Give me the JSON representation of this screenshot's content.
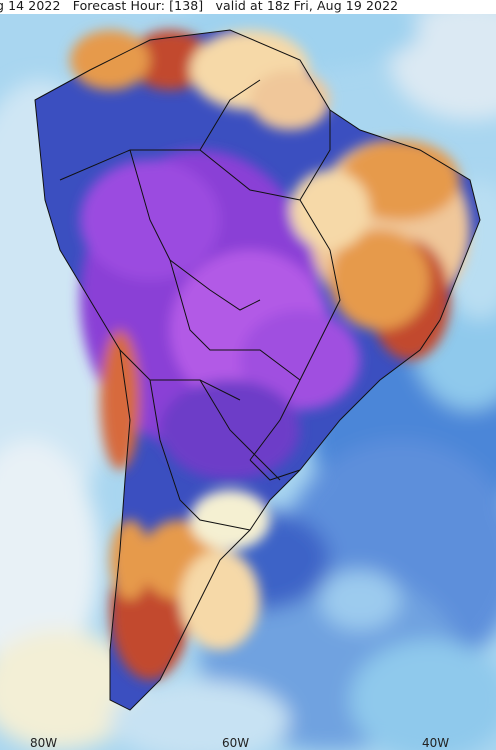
{
  "header": {
    "text": "g 14 2022   Forecast Hour: [138]   valid at 18z Fri, Aug 19 2022"
  },
  "axis": {
    "x_ticks": [
      {
        "label": "80W",
        "lon": -80
      },
      {
        "label": "60W",
        "lon": -60
      },
      {
        "label": "40W",
        "lon": -40
      }
    ]
  },
  "colors": {
    "ocean_light": "#cfe6f4",
    "ocean_mid": "#8fc9ec",
    "ocean_blue": "#4c86d8",
    "deep_blue": "#2f4fb8",
    "purple": "#8a3fd6",
    "violet": "#b25ae6",
    "warm_light": "#f6d9a8",
    "warm_orange": "#e69a4c",
    "warm_red": "#c24a2e",
    "pale_yellow": "#f5f0d2",
    "border": "#111111"
  }
}
